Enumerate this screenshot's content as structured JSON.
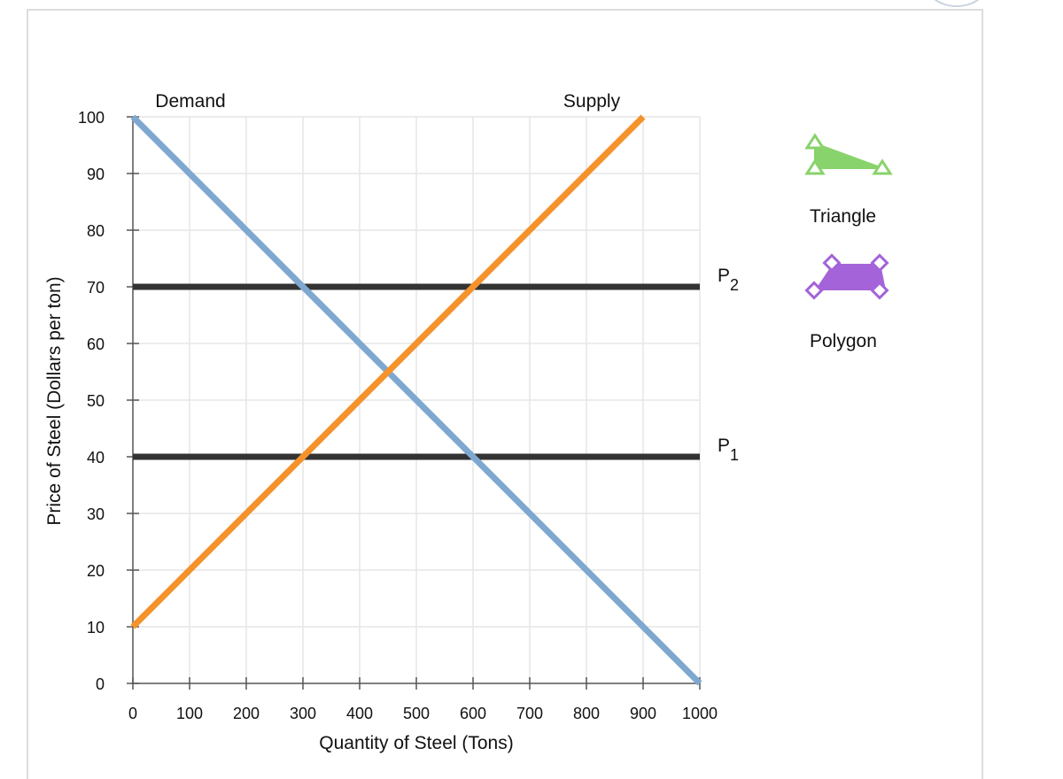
{
  "chart_data": {
    "type": "line",
    "title": "",
    "xlabel": "Quantity of Steel (Tons)",
    "ylabel": "Price of Steel (Dollars per ton)",
    "xlim": [
      0,
      1000
    ],
    "ylim": [
      0,
      100
    ],
    "x_ticks": [
      "0",
      "100",
      "200",
      "300",
      "400",
      "500",
      "600",
      "700",
      "800",
      "900",
      "1000"
    ],
    "y_ticks": [
      "0",
      "10",
      "20",
      "30",
      "40",
      "50",
      "60",
      "70",
      "80",
      "90",
      "100"
    ],
    "grid": true,
    "series": [
      {
        "name": "Demand",
        "color": "#7ea8cf",
        "x": [
          0,
          1000
        ],
        "y": [
          100,
          0
        ]
      },
      {
        "name": "Supply",
        "color": "#f5922b",
        "x": [
          0,
          900
        ],
        "y": [
          10,
          100
        ]
      }
    ],
    "price_lines": [
      {
        "label": "P",
        "sub": "2",
        "color": "#333333",
        "y": 70
      },
      {
        "label": "P",
        "sub": "1",
        "color": "#333333",
        "y": 40
      }
    ]
  },
  "tools": {
    "triangle": {
      "label": "Triangle",
      "color": "#88d36b",
      "icon": "triangle-tool-icon"
    },
    "polygon": {
      "label": "Polygon",
      "color": "#a463d8",
      "icon": "polygon-tool-icon"
    }
  }
}
